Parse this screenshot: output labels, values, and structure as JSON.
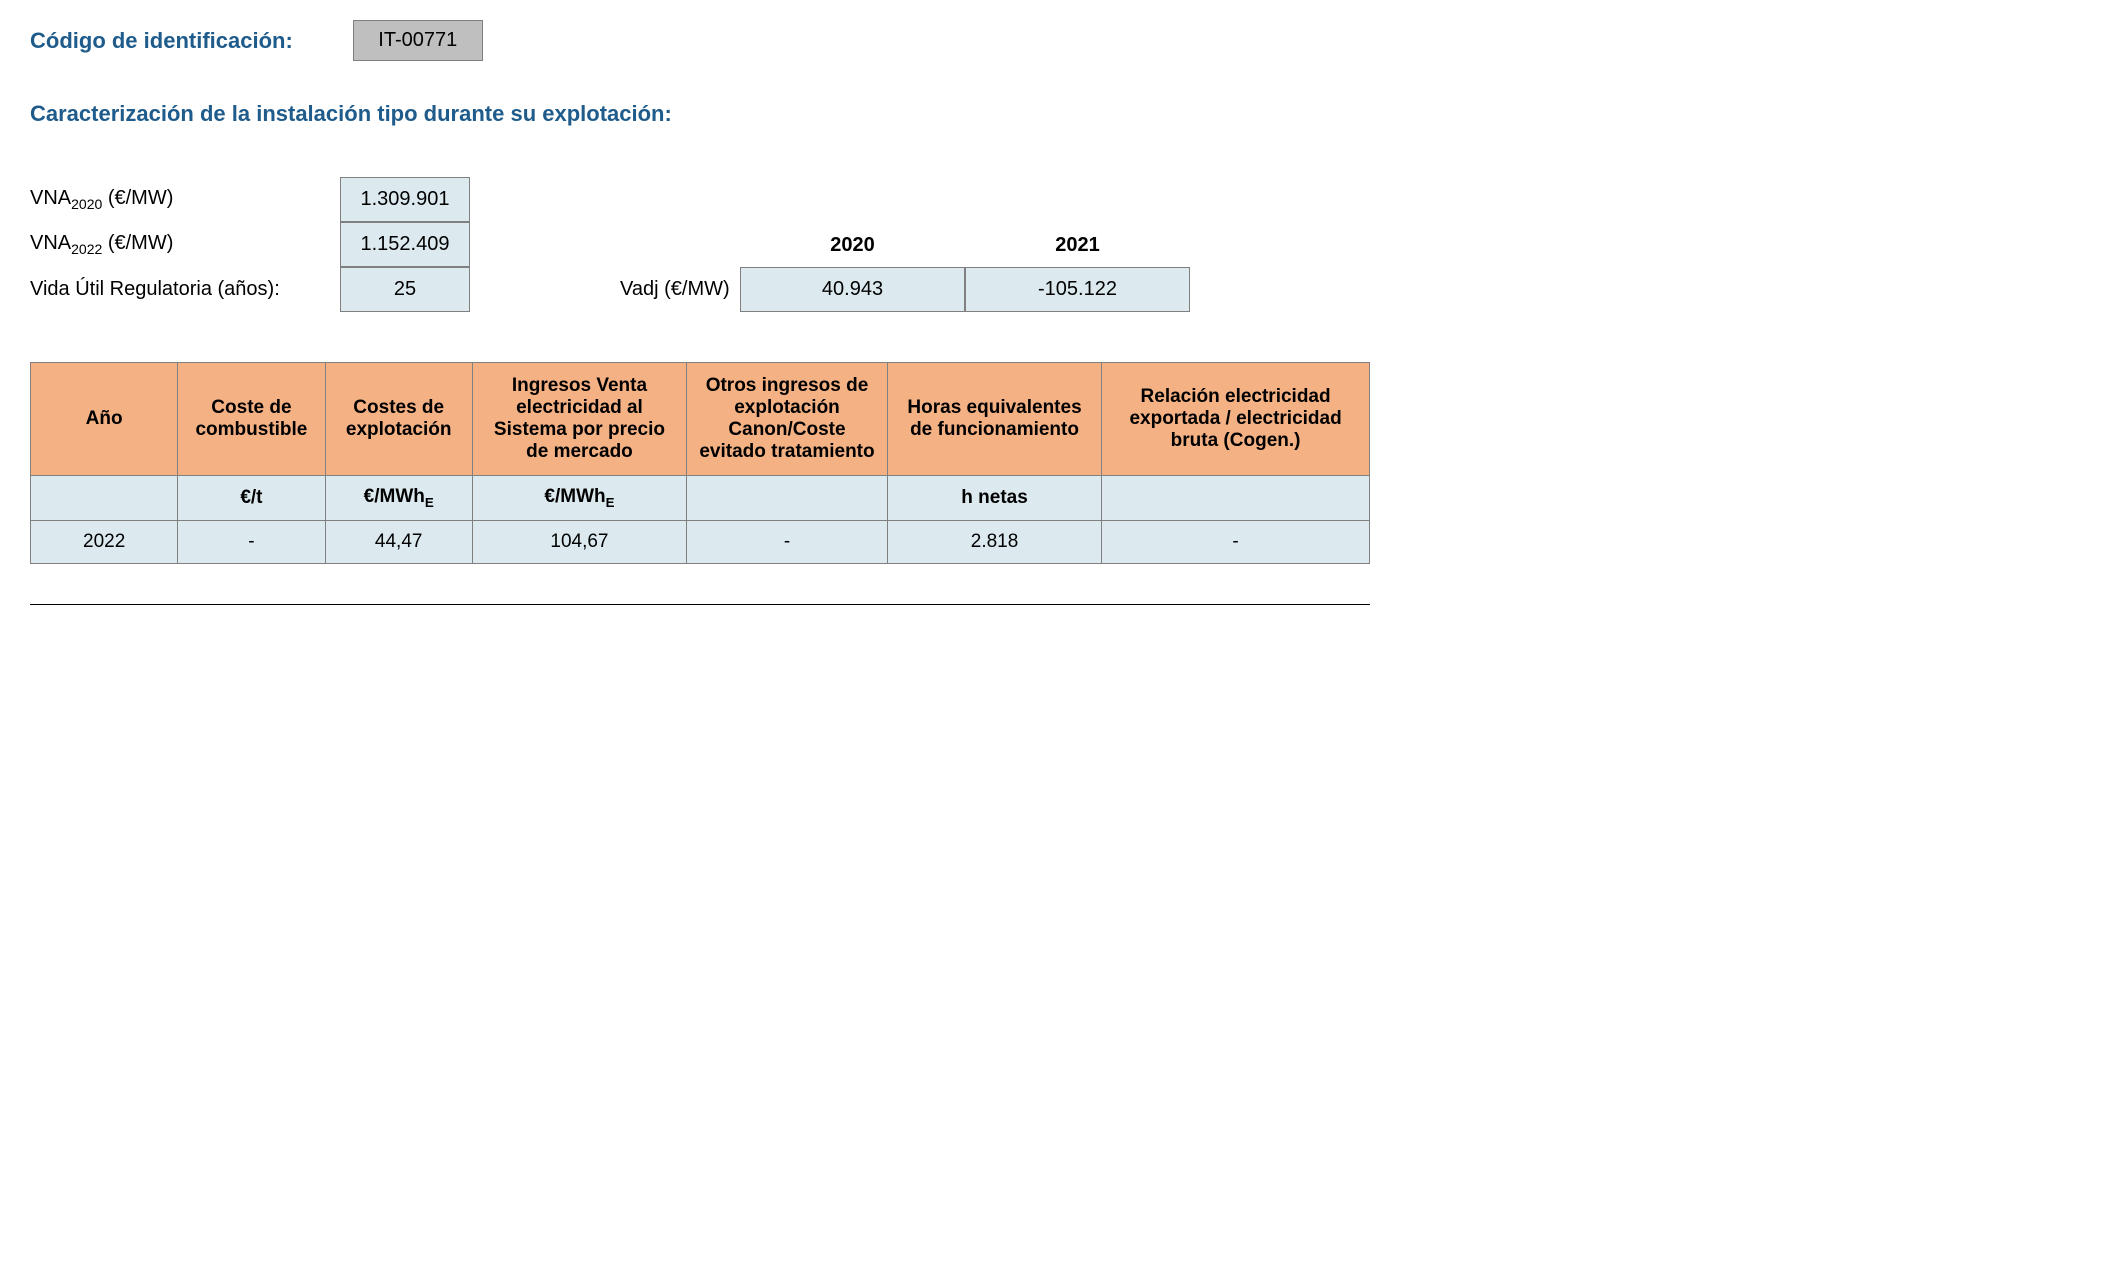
{
  "header": {
    "code_label": "Código de identificación:",
    "code_value": "IT-00771"
  },
  "section_title": "Caracterización de la instalación tipo durante su explotación:",
  "params": {
    "vna2020": {
      "label_prefix": "VNA",
      "label_sub": "2020",
      "label_suffix": " (€/MW)",
      "value": "1.309.901"
    },
    "vna2022": {
      "label_prefix": "VNA",
      "label_sub": "2022",
      "label_suffix": " (€/MW)",
      "value": "1.152.409"
    },
    "vida_util": {
      "label": "Vida Útil Regulatoria (años):",
      "value": "25"
    }
  },
  "vadj": {
    "label": "Vadj (€/MW)",
    "years": [
      "2020",
      "2021"
    ],
    "values": [
      "40.943",
      "-105.122"
    ]
  },
  "table": {
    "headers": [
      "Año",
      "Coste de combustible",
      "Costes de explotación",
      "Ingresos Venta electricidad al Sistema por precio de mercado",
      "Otros ingresos de explotación Canon/Coste evitado tratamiento",
      "Horas equivalentes de funcionamiento",
      "Relación electricidad exportada / electricidad bruta (Cogen.)"
    ],
    "units": {
      "col0": "",
      "col1": "€/t",
      "col2_prefix": "€/MWh",
      "col2_sub": "E",
      "col3_prefix": "€/MWh",
      "col3_sub": "E",
      "col4": "",
      "col5": "h netas",
      "col6": ""
    },
    "rows": [
      {
        "year": "2022",
        "fuel_cost": "-",
        "operating_cost": "44,47",
        "sales_income": "104,67",
        "other_income": "-",
        "equiv_hours": "2.818",
        "export_ratio": "-"
      }
    ],
    "colors": {
      "header_bg": "#f4b183",
      "cell_bg": "#dceaf0",
      "border": "#808080"
    }
  }
}
